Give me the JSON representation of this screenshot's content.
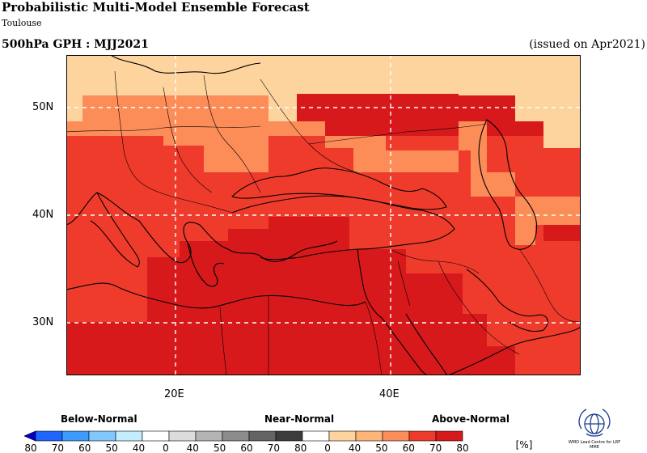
{
  "header": {
    "title": "Probabilistic Multi-Model Ensemble Forecast",
    "subtitle": "Toulouse",
    "variable": "500hPa GPH : MJJ2021",
    "issued": "(issued on Apr2021)"
  },
  "map": {
    "lon_range": [
      10,
      56.5
    ],
    "lat_range": [
      25,
      55
    ],
    "lat_ticks": [
      {
        "value": 50,
        "label": "50N"
      },
      {
        "value": 40,
        "label": "40N"
      },
      {
        "value": 30,
        "label": "30N"
      }
    ],
    "lon_ticks": [
      {
        "value": 20,
        "label": "20E"
      },
      {
        "value": 40,
        "label": "40E"
      }
    ],
    "categories_colors": {
      "50-60": "#fdd49e",
      "60-70": "#fc8d59",
      "70-80": "#ef3b2c",
      "80+": "#d7191c"
    },
    "regions": [
      {
        "name": "north-band-light",
        "category": "50-60"
      },
      {
        "name": "central-band-orange",
        "category": "60-70"
      },
      {
        "name": "southern-band-red",
        "category": "70-80"
      },
      {
        "name": "core-deep-red",
        "category": "80+"
      }
    ]
  },
  "legend": {
    "below_label": "Below-Normal",
    "near_label": "Near-Normal",
    "above_label": "Above-Normal",
    "unit": "[%]",
    "below": {
      "colors": [
        "#0000cd",
        "#1e66ff",
        "#3c9bff",
        "#82c8ff",
        "#c3ecff"
      ],
      "ticks": [
        "80",
        "70",
        "60",
        "50",
        "40"
      ]
    },
    "near": {
      "colors": [
        "#ffffff",
        "#dcdcdc",
        "#b4b4b4",
        "#8c8c8c",
        "#646464",
        "#3c3c3c"
      ],
      "ticks": [
        "0",
        "40",
        "50",
        "60",
        "70",
        "80"
      ]
    },
    "above": {
      "colors": [
        "#ffffff",
        "#fdd49e",
        "#fdb57a",
        "#fc8d59",
        "#ef3b2c",
        "#d7191c"
      ],
      "ticks": [
        "0",
        "40",
        "50",
        "60",
        "70",
        "80"
      ]
    }
  },
  "logo": {
    "caption": "WMO Lead Centre for LRF MME"
  }
}
